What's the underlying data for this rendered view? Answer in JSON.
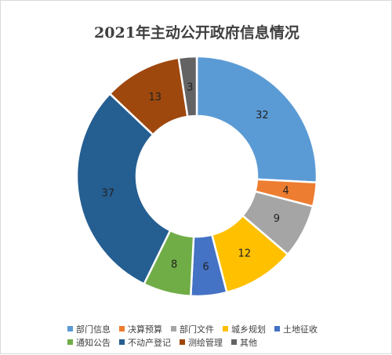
{
  "chart_data": {
    "type": "pie",
    "title": "2021年主动公开政府信息情况",
    "categories": [
      "部门信息",
      "决算预算",
      "部门文件",
      "城乡规划",
      "土地征收",
      "通知公告",
      "不动产登记",
      "测绘管理",
      "其他"
    ],
    "values": [
      32,
      4,
      9,
      12,
      6,
      8,
      37,
      13,
      3
    ],
    "colors": [
      "#5b9bd5",
      "#ed7d31",
      "#a5a5a5",
      "#ffc000",
      "#4472c4",
      "#70ad47",
      "#255e91",
      "#9e480e",
      "#636363"
    ],
    "legend_position": "bottom"
  }
}
